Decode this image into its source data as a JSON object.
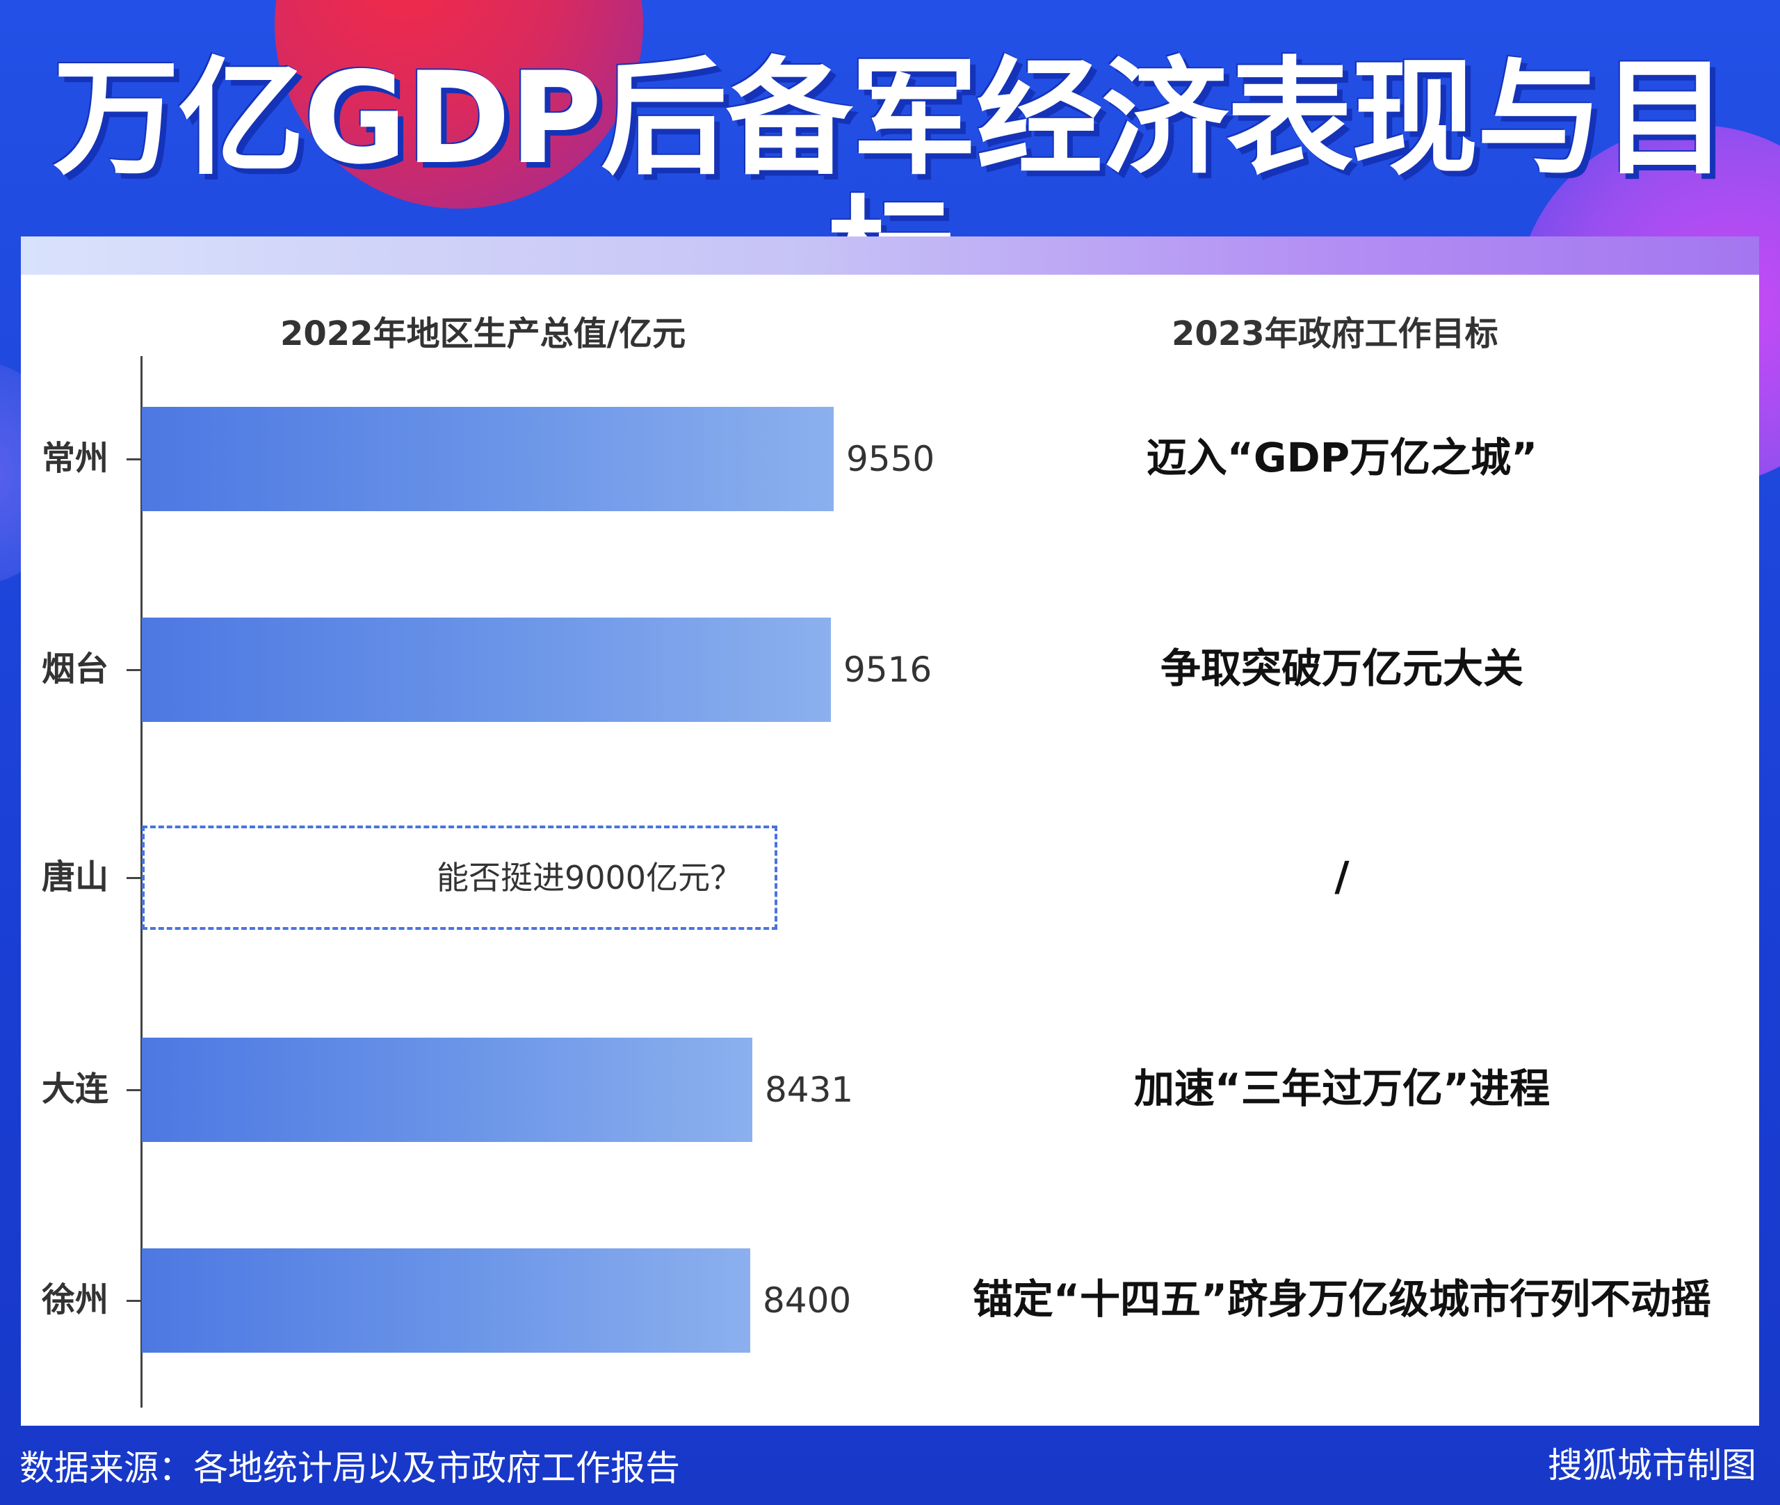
{
  "title": "万亿GDP后备军经济表现与目标",
  "chart_data": {
    "type": "bar",
    "orientation": "horizontal",
    "xlabel": "2022年地区生产总值/亿元",
    "goal_header": "2023年政府工作目标",
    "categories": [
      "常州",
      "烟台",
      "唐山",
      "大连",
      "徐州"
    ],
    "values": [
      9550,
      9516,
      null,
      8431,
      8400
    ],
    "value_labels": [
      "9550",
      "9516",
      "",
      "8431",
      "8400"
    ],
    "xlim": [
      0,
      10000
    ],
    "placeholder_note": "能否挺进9000亿元？",
    "placeholder_value": 9000,
    "goals": [
      "迈入“GDP万亿之城”",
      "争取突破万亿元大关",
      "/",
      "加速“三年过万亿”进程",
      "锚定“十四五”跻身万亿级城市行列不动摇"
    ]
  },
  "footer": {
    "source": "数据来源：各地统计局以及市政府工作报告",
    "credit": "搜狐城市制图"
  },
  "colors": {
    "bar_start": "#4d78e2",
    "bar_end": "#8cb0ee",
    "background": "#1f44d8",
    "accent_red": "#f22a48",
    "accent_purple": "#c94af5"
  }
}
